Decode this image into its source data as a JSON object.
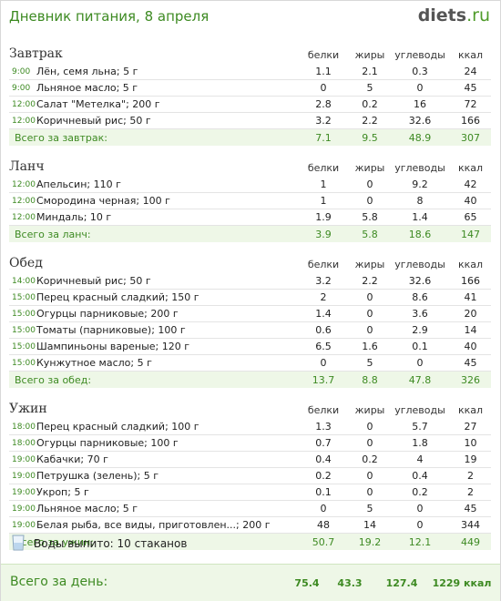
{
  "header": {
    "title": "Дневник питания, 8 апреля",
    "logo_main": "diets",
    "logo_tld": ".ru"
  },
  "columns": {
    "protein": "белки",
    "fat": "жиры",
    "carbs": "углеводы",
    "kcal": "ккал"
  },
  "meals": [
    {
      "name": "Завтрак",
      "items": [
        {
          "time": "9:00",
          "food": "Лён, семя льна; 5 г",
          "protein": "1.1",
          "fat": "2.1",
          "carbs": "0.3",
          "kcal": "24"
        },
        {
          "time": "9:00",
          "food": "Льняное масло; 5 г",
          "protein": "0",
          "fat": "5",
          "carbs": "0",
          "kcal": "45"
        },
        {
          "time": "12:00",
          "food": "Салат \"Метелка\"; 200 г",
          "protein": "2.8",
          "fat": "0.2",
          "carbs": "16",
          "kcal": "72"
        },
        {
          "time": "12:00",
          "food": "Коричневый рис; 50 г",
          "protein": "3.2",
          "fat": "2.2",
          "carbs": "32.6",
          "kcal": "166"
        }
      ],
      "total": {
        "label": "Всего за завтрак:",
        "protein": "7.1",
        "fat": "9.5",
        "carbs": "48.9",
        "kcal": "307"
      }
    },
    {
      "name": "Ланч",
      "items": [
        {
          "time": "12:00",
          "food": "Апельсин; 110 г",
          "protein": "1",
          "fat": "0",
          "carbs": "9.2",
          "kcal": "42"
        },
        {
          "time": "12:00",
          "food": "Смородина черная; 100 г",
          "protein": "1",
          "fat": "0",
          "carbs": "8",
          "kcal": "40"
        },
        {
          "time": "12:00",
          "food": "Миндаль; 10 г",
          "protein": "1.9",
          "fat": "5.8",
          "carbs": "1.4",
          "kcal": "65"
        }
      ],
      "total": {
        "label": "Всего за ланч:",
        "protein": "3.9",
        "fat": "5.8",
        "carbs": "18.6",
        "kcal": "147"
      }
    },
    {
      "name": "Обед",
      "items": [
        {
          "time": "14:00",
          "food": "Коричневый рис; 50 г",
          "protein": "3.2",
          "fat": "2.2",
          "carbs": "32.6",
          "kcal": "166"
        },
        {
          "time": "15:00",
          "food": "Перец красный сладкий; 150 г",
          "protein": "2",
          "fat": "0",
          "carbs": "8.6",
          "kcal": "41"
        },
        {
          "time": "15:00",
          "food": "Огурцы парниковые; 200 г",
          "protein": "1.4",
          "fat": "0",
          "carbs": "3.6",
          "kcal": "20"
        },
        {
          "time": "15:00",
          "food": "Томаты (парниковые); 100 г",
          "protein": "0.6",
          "fat": "0",
          "carbs": "2.9",
          "kcal": "14"
        },
        {
          "time": "15:00",
          "food": "Шампиньоны вареные; 120 г",
          "protein": "6.5",
          "fat": "1.6",
          "carbs": "0.1",
          "kcal": "40"
        },
        {
          "time": "15:00",
          "food": "Кунжутное масло; 5 г",
          "protein": "0",
          "fat": "5",
          "carbs": "0",
          "kcal": "45"
        }
      ],
      "total": {
        "label": "Всего за обед:",
        "protein": "13.7",
        "fat": "8.8",
        "carbs": "47.8",
        "kcal": "326"
      }
    },
    {
      "name": "Ужин",
      "items": [
        {
          "time": "18:00",
          "food": "Перец красный сладкий; 100 г",
          "protein": "1.3",
          "fat": "0",
          "carbs": "5.7",
          "kcal": "27"
        },
        {
          "time": "18:00",
          "food": "Огурцы парниковые; 100 г",
          "protein": "0.7",
          "fat": "0",
          "carbs": "1.8",
          "kcal": "10"
        },
        {
          "time": "19:00",
          "food": "Кабачки; 70 г",
          "protein": "0.4",
          "fat": "0.2",
          "carbs": "4",
          "kcal": "19"
        },
        {
          "time": "19:00",
          "food": "Петрушка (зелень); 5 г",
          "protein": "0.2",
          "fat": "0",
          "carbs": "0.4",
          "kcal": "2"
        },
        {
          "time": "19:00",
          "food": "Укроп; 5 г",
          "protein": "0.1",
          "fat": "0",
          "carbs": "0.2",
          "kcal": "2"
        },
        {
          "time": "19:00",
          "food": "Льняное масло; 5 г",
          "protein": "0",
          "fat": "5",
          "carbs": "0",
          "kcal": "45"
        },
        {
          "time": "19:00",
          "food": "Белая рыба, все виды, приготовлен...; 200 г",
          "protein": "48",
          "fat": "14",
          "carbs": "0",
          "kcal": "344"
        }
      ],
      "total": {
        "label": "Всего за ужин:",
        "protein": "50.7",
        "fat": "19.2",
        "carbs": "12.1",
        "kcal": "449"
      }
    }
  ],
  "water": {
    "icon": "glass-icon",
    "text": "Воды выпито: 10 стаканов"
  },
  "day_total": {
    "label": "Всего за день:",
    "protein": "75.4",
    "fat": "43.3",
    "carbs": "127.4",
    "kcal": "1229 ккал"
  },
  "colors": {
    "accent": "#3d8a22",
    "total_bg": "#eef7e7"
  }
}
